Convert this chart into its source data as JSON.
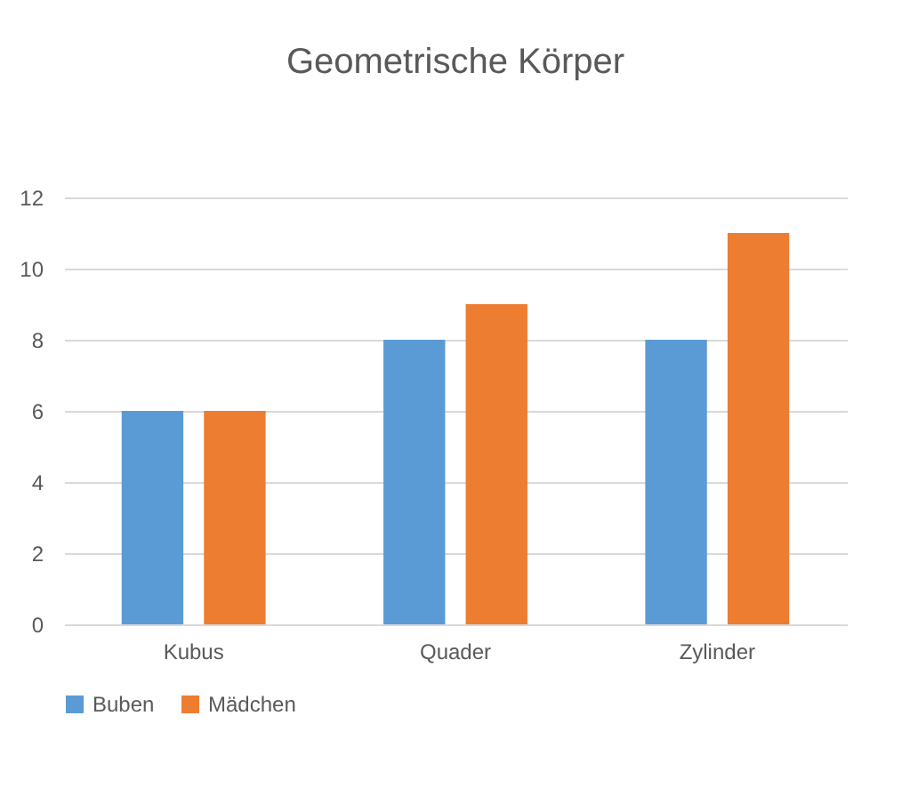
{
  "chart_data": {
    "type": "bar",
    "title": "Geometrische Körper",
    "categories": [
      "Kubus",
      "Quader",
      "Zylinder"
    ],
    "series": [
      {
        "name": "Buben",
        "color": "#5b9bd5",
        "values": [
          6,
          8,
          8
        ]
      },
      {
        "name": "Mädchen",
        "color": "#ed7d31",
        "values": [
          6,
          9,
          11
        ]
      }
    ],
    "ylim": [
      0,
      12
    ],
    "yticks": [
      0,
      2,
      4,
      6,
      8,
      10,
      12
    ],
    "grid": "y",
    "legend": "bottom"
  }
}
